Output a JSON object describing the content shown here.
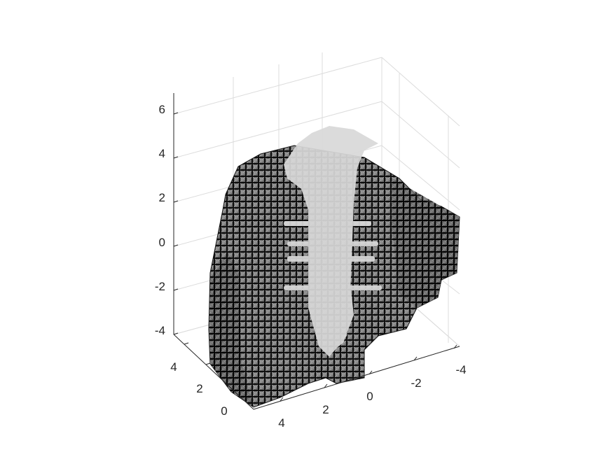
{
  "figure": {
    "type": "3d-voxel-plot",
    "background": "#ffffff",
    "colors": {
      "axis": "#262626",
      "grid": "#dcdcdc",
      "voxel_fill": "#5a5a5a",
      "voxel_edge": "#111111",
      "inner_surface": "#d9d9d9"
    },
    "z_ticks": [
      "6",
      "4",
      "2",
      "0",
      "-2",
      "-4"
    ],
    "x_ticks": [
      "4",
      "2",
      "0",
      "-2",
      "-4"
    ],
    "y_ticks": [
      "4",
      "2",
      "0"
    ]
  }
}
